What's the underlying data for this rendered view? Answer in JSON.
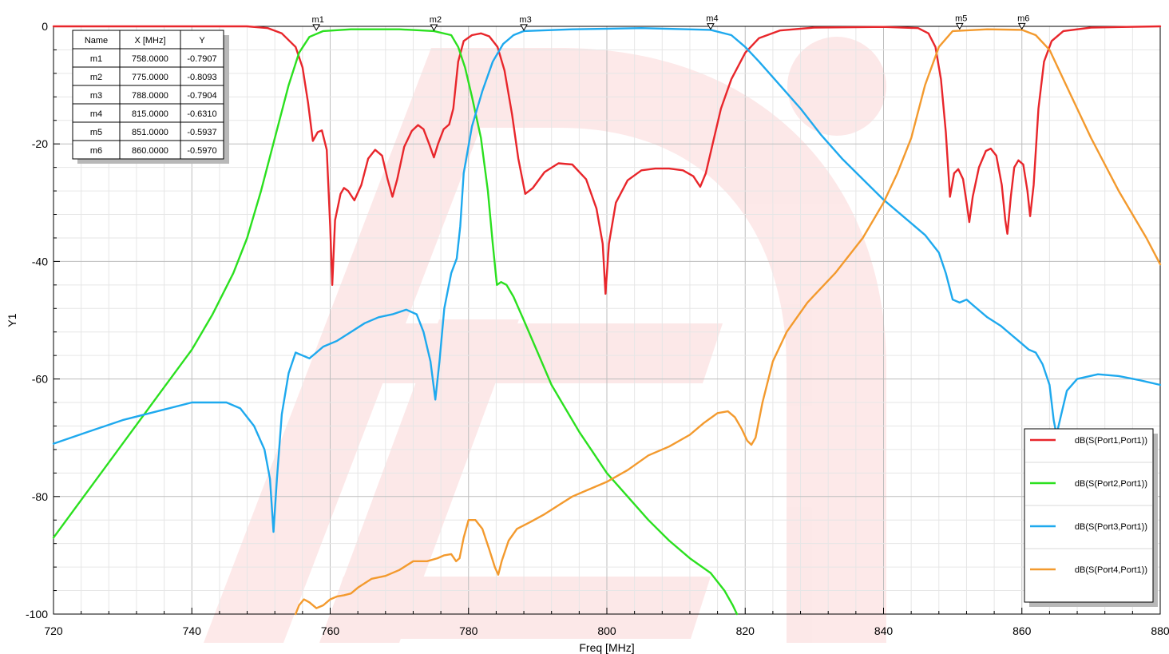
{
  "chart_data": {
    "type": "line",
    "xlabel": "Freq [MHz]",
    "ylabel": "Y1",
    "xlim": [
      720,
      880
    ],
    "ylim": [
      -100,
      0
    ],
    "x_ticks": [
      "720",
      "740",
      "760",
      "780",
      "800",
      "820",
      "840",
      "860",
      "880"
    ],
    "y_ticks": [
      "0",
      "-20",
      "-40",
      "-60",
      "-80",
      "-100"
    ],
    "grid": true,
    "legend_position": "bottom-right",
    "series": [
      {
        "name": "dB(S(Port1,Port1))",
        "color": "#e8262b",
        "points": [
          [
            720,
            0
          ],
          [
            748,
            0
          ],
          [
            751,
            -0.3
          ],
          [
            753,
            -1.2
          ],
          [
            755,
            -3.5
          ],
          [
            756,
            -7
          ],
          [
            756.8,
            -13
          ],
          [
            757.5,
            -19.5
          ],
          [
            758.2,
            -18
          ],
          [
            758.8,
            -17.7
          ],
          [
            759.5,
            -21
          ],
          [
            760,
            -34
          ],
          [
            760.3,
            -44
          ],
          [
            760.7,
            -33
          ],
          [
            761.5,
            -28.5
          ],
          [
            762,
            -27.5
          ],
          [
            762.6,
            -28
          ],
          [
            763.5,
            -29.6
          ],
          [
            764.5,
            -27
          ],
          [
            765.5,
            -22.5
          ],
          [
            766.5,
            -21
          ],
          [
            767.5,
            -22
          ],
          [
            768.3,
            -26
          ],
          [
            769,
            -29
          ],
          [
            769.7,
            -26
          ],
          [
            770.7,
            -20.5
          ],
          [
            771.8,
            -17.8
          ],
          [
            772.7,
            -16.8
          ],
          [
            773.5,
            -17.5
          ],
          [
            774.3,
            -20
          ],
          [
            775,
            -22.3
          ],
          [
            775.6,
            -20
          ],
          [
            776.4,
            -17.5
          ],
          [
            777.2,
            -16.7
          ],
          [
            777.8,
            -14
          ],
          [
            778.5,
            -6
          ],
          [
            779.3,
            -2.5
          ],
          [
            780.5,
            -1.5
          ],
          [
            781.8,
            -1.2
          ],
          [
            783,
            -1.7
          ],
          [
            784.2,
            -3.5
          ],
          [
            785.2,
            -7.5
          ],
          [
            786.3,
            -15
          ],
          [
            787.2,
            -22.5
          ],
          [
            788.2,
            -28.5
          ],
          [
            789.3,
            -27.5
          ],
          [
            791,
            -24.8
          ],
          [
            793,
            -23.3
          ],
          [
            795,
            -23.5
          ],
          [
            797,
            -26
          ],
          [
            798.5,
            -31
          ],
          [
            799.4,
            -37
          ],
          [
            799.8,
            -45.5
          ],
          [
            800.3,
            -37
          ],
          [
            801.3,
            -30
          ],
          [
            803,
            -26.2
          ],
          [
            805,
            -24.5
          ],
          [
            807,
            -24.2
          ],
          [
            809,
            -24.2
          ],
          [
            811,
            -24.5
          ],
          [
            812.5,
            -25.5
          ],
          [
            813.5,
            -27.3
          ],
          [
            814.3,
            -25
          ],
          [
            815.3,
            -20
          ],
          [
            816.5,
            -14
          ],
          [
            818,
            -9
          ],
          [
            820,
            -4.5
          ],
          [
            822,
            -2
          ],
          [
            825,
            -0.7
          ],
          [
            830,
            -0.2
          ],
          [
            840,
            -0.1
          ],
          [
            845,
            -0.3
          ],
          [
            846.5,
            -1.2
          ],
          [
            847.5,
            -3.5
          ],
          [
            848.3,
            -9
          ],
          [
            849,
            -18
          ],
          [
            849.6,
            -29
          ],
          [
            850.2,
            -25
          ],
          [
            850.8,
            -24.3
          ],
          [
            851.5,
            -26
          ],
          [
            852,
            -30
          ],
          [
            852.4,
            -33.3
          ],
          [
            852.9,
            -29
          ],
          [
            853.8,
            -24
          ],
          [
            854.8,
            -21.2
          ],
          [
            855.5,
            -20.8
          ],
          [
            856.3,
            -22
          ],
          [
            857.1,
            -27
          ],
          [
            857.6,
            -33
          ],
          [
            857.9,
            -35.3
          ],
          [
            858.4,
            -29
          ],
          [
            858.9,
            -24
          ],
          [
            859.5,
            -22.8
          ],
          [
            860.2,
            -23.5
          ],
          [
            860.8,
            -28
          ],
          [
            861.2,
            -32.3
          ],
          [
            861.7,
            -27
          ],
          [
            862.4,
            -14
          ],
          [
            863.2,
            -6
          ],
          [
            864.3,
            -2.5
          ],
          [
            866,
            -0.8
          ],
          [
            870,
            -0.2
          ],
          [
            880,
            0
          ]
        ]
      },
      {
        "name": "dB(S(Port2,Port1))",
        "color": "#2be01f",
        "points": [
          [
            720,
            -87
          ],
          [
            725,
            -79
          ],
          [
            730,
            -71
          ],
          [
            735,
            -63
          ],
          [
            740,
            -55
          ],
          [
            743,
            -49
          ],
          [
            746,
            -42
          ],
          [
            748,
            -36
          ],
          [
            750,
            -28
          ],
          [
            752,
            -19
          ],
          [
            754,
            -10
          ],
          [
            755.5,
            -4.5
          ],
          [
            757,
            -1.8
          ],
          [
            759,
            -0.8
          ],
          [
            763,
            -0.5
          ],
          [
            770,
            -0.5
          ],
          [
            775,
            -0.8
          ],
          [
            777.5,
            -1.5
          ],
          [
            778.5,
            -3.5
          ],
          [
            779.5,
            -7
          ],
          [
            780.5,
            -12
          ],
          [
            781.8,
            -19
          ],
          [
            782.8,
            -28
          ],
          [
            783.5,
            -37
          ],
          [
            784.1,
            -44
          ],
          [
            784.7,
            -43.5
          ],
          [
            785.5,
            -44
          ],
          [
            786.5,
            -46
          ],
          [
            788,
            -50
          ],
          [
            790,
            -55.5
          ],
          [
            792,
            -61
          ],
          [
            794,
            -65
          ],
          [
            796,
            -69
          ],
          [
            798,
            -72.5
          ],
          [
            800,
            -76
          ],
          [
            803,
            -80
          ],
          [
            806,
            -84
          ],
          [
            809,
            -87.5
          ],
          [
            812,
            -90.5
          ],
          [
            815,
            -93
          ],
          [
            817,
            -96
          ],
          [
            818.2,
            -98.5
          ],
          [
            818.8,
            -100
          ]
        ]
      },
      {
        "name": "dB(S(Port3,Port1))",
        "color": "#1ea9ee",
        "points": [
          [
            720,
            -71
          ],
          [
            725,
            -69
          ],
          [
            730,
            -67
          ],
          [
            735,
            -65.5
          ],
          [
            740,
            -64
          ],
          [
            745,
            -64
          ],
          [
            747,
            -65
          ],
          [
            749,
            -68
          ],
          [
            750.5,
            -72
          ],
          [
            751.3,
            -77
          ],
          [
            751.8,
            -86
          ],
          [
            752.3,
            -77
          ],
          [
            753,
            -66
          ],
          [
            754,
            -59
          ],
          [
            755,
            -55.5
          ],
          [
            756,
            -56
          ],
          [
            757,
            -56.5
          ],
          [
            758,
            -55.5
          ],
          [
            759,
            -54.5
          ],
          [
            761,
            -53.5
          ],
          [
            763,
            -52
          ],
          [
            765,
            -50.5
          ],
          [
            767,
            -49.5
          ],
          [
            769,
            -49
          ],
          [
            771,
            -48.2
          ],
          [
            772.5,
            -49
          ],
          [
            773.5,
            -52
          ],
          [
            774.5,
            -57
          ],
          [
            775.2,
            -63.5
          ],
          [
            775.8,
            -57
          ],
          [
            776.5,
            -48
          ],
          [
            777.5,
            -42
          ],
          [
            778.3,
            -39.5
          ],
          [
            778.8,
            -34
          ],
          [
            779.3,
            -25
          ],
          [
            780.5,
            -17
          ],
          [
            782,
            -11
          ],
          [
            783.5,
            -6
          ],
          [
            785,
            -3
          ],
          [
            786.5,
            -1.5
          ],
          [
            788,
            -0.8
          ],
          [
            795,
            -0.5
          ],
          [
            805,
            -0.3
          ],
          [
            815,
            -0.6
          ],
          [
            818,
            -1.5
          ],
          [
            820,
            -3.5
          ],
          [
            822,
            -6
          ],
          [
            825,
            -10
          ],
          [
            828,
            -14
          ],
          [
            831,
            -18.5
          ],
          [
            834,
            -22.5
          ],
          [
            837,
            -26
          ],
          [
            840,
            -29.5
          ],
          [
            843,
            -32.5
          ],
          [
            846,
            -35.5
          ],
          [
            848,
            -38.5
          ],
          [
            849,
            -42
          ],
          [
            850,
            -46.5
          ],
          [
            851,
            -47
          ],
          [
            852,
            -46.5
          ],
          [
            853,
            -47.5
          ],
          [
            855,
            -49.5
          ],
          [
            857,
            -51
          ],
          [
            859,
            -53
          ],
          [
            861,
            -55
          ],
          [
            862,
            -55.5
          ],
          [
            863,
            -57.5
          ],
          [
            864,
            -61
          ],
          [
            864.6,
            -67
          ],
          [
            865,
            -69.5
          ],
          [
            865.7,
            -66
          ],
          [
            866.5,
            -62
          ],
          [
            868,
            -60
          ],
          [
            871,
            -59.2
          ],
          [
            874,
            -59.5
          ],
          [
            877,
            -60.2
          ],
          [
            880,
            -61
          ]
        ]
      },
      {
        "name": "dB(S(Port4,Port1))",
        "color": "#f39a2e",
        "points": [
          [
            755,
            -100
          ],
          [
            755.5,
            -98.5
          ],
          [
            756.2,
            -97.5
          ],
          [
            757,
            -98
          ],
          [
            758,
            -99
          ],
          [
            759,
            -98.5
          ],
          [
            760,
            -97.5
          ],
          [
            761,
            -97
          ],
          [
            762,
            -96.8
          ],
          [
            763,
            -96.5
          ],
          [
            764,
            -95.5
          ],
          [
            766,
            -94
          ],
          [
            768,
            -93.5
          ],
          [
            770,
            -92.5
          ],
          [
            772,
            -91
          ],
          [
            774,
            -91
          ],
          [
            775.5,
            -90.5
          ],
          [
            776.5,
            -90
          ],
          [
            777.5,
            -89.8
          ],
          [
            778.2,
            -91
          ],
          [
            778.7,
            -90.5
          ],
          [
            779.3,
            -87
          ],
          [
            780,
            -84
          ],
          [
            781,
            -84
          ],
          [
            782,
            -85.5
          ],
          [
            783,
            -89
          ],
          [
            783.8,
            -92
          ],
          [
            784.3,
            -93.3
          ],
          [
            784.8,
            -91
          ],
          [
            785.8,
            -87.5
          ],
          [
            787,
            -85.5
          ],
          [
            789,
            -84.3
          ],
          [
            791,
            -83
          ],
          [
            793,
            -81.5
          ],
          [
            795,
            -80
          ],
          [
            797,
            -79
          ],
          [
            800,
            -77.5
          ],
          [
            803,
            -75.5
          ],
          [
            806,
            -73
          ],
          [
            809,
            -71.5
          ],
          [
            812,
            -69.5
          ],
          [
            814,
            -67.5
          ],
          [
            816,
            -65.8
          ],
          [
            817.5,
            -65.5
          ],
          [
            818.5,
            -66.5
          ],
          [
            819.5,
            -68.5
          ],
          [
            820.3,
            -70.5
          ],
          [
            820.9,
            -71.2
          ],
          [
            821.5,
            -70
          ],
          [
            822.5,
            -64
          ],
          [
            824,
            -57
          ],
          [
            826,
            -52
          ],
          [
            829,
            -47
          ],
          [
            833,
            -42
          ],
          [
            837,
            -36
          ],
          [
            840,
            -30
          ],
          [
            842,
            -25
          ],
          [
            844,
            -19
          ],
          [
            846,
            -10
          ],
          [
            848,
            -3.5
          ],
          [
            850,
            -0.8
          ],
          [
            855,
            -0.5
          ],
          [
            860,
            -0.6
          ],
          [
            862,
            -1.5
          ],
          [
            864,
            -4
          ],
          [
            866,
            -9
          ],
          [
            868,
            -14
          ],
          [
            870,
            -19
          ],
          [
            872,
            -23.5
          ],
          [
            874,
            -28
          ],
          [
            876,
            -32
          ],
          [
            878,
            -36
          ],
          [
            880,
            -40.5
          ]
        ]
      }
    ],
    "markers": [
      {
        "name": "m1",
        "x": "758.0000",
        "y": "-0.7907"
      },
      {
        "name": "m2",
        "x": "775.0000",
        "y": "-0.8093"
      },
      {
        "name": "m3",
        "x": "788.0000",
        "y": "-0.7904"
      },
      {
        "name": "m4",
        "x": "815.0000",
        "y": "-0.6310"
      },
      {
        "name": "m5",
        "x": "851.0000",
        "y": "-0.5937"
      },
      {
        "name": "m6",
        "x": "860.0000",
        "y": "-0.5970"
      }
    ],
    "marker_table_headers": [
      "Name",
      "X [MHz]",
      "Y"
    ]
  }
}
